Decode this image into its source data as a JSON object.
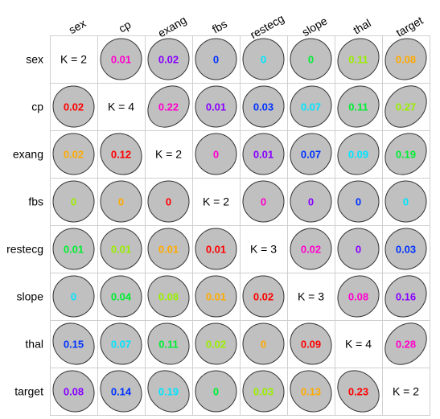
{
  "chart_data": {
    "type": "heatmap",
    "variables": [
      "sex",
      "cp",
      "exang",
      "fbs",
      "restecg",
      "slope",
      "thal",
      "target"
    ],
    "diagonal_labels": [
      "K = 2",
      "K = 4",
      "K = 2",
      "K = 2",
      "K = 3",
      "K = 3",
      "K = 4",
      "K = 2"
    ],
    "cells": [
      [
        null,
        "0.01",
        "0.02",
        "0",
        "0",
        "0",
        "0.11",
        "0.08"
      ],
      [
        "0.02",
        null,
        "0.22",
        "0.01",
        "0.03",
        "0.07",
        "0.11",
        "0.27"
      ],
      [
        "0.02",
        "0.12",
        null,
        "0",
        "0.01",
        "0.07",
        "0.09",
        "0.19"
      ],
      [
        "0",
        "0",
        "0",
        null,
        "0",
        "0",
        "0",
        "0"
      ],
      [
        "0.01",
        "0.01",
        "0.01",
        "0.01",
        null,
        "0.02",
        "0",
        "0.03"
      ],
      [
        "0",
        "0.04",
        "0.08",
        "0.01",
        "0.02",
        null,
        "0.08",
        "0.16"
      ],
      [
        "0.15",
        "0.07",
        "0.11",
        "0.02",
        "0",
        "0.09",
        null,
        "0.28"
      ],
      [
        "0.08",
        "0.14",
        "0.19",
        "0",
        "0.03",
        "0.13",
        "0.23",
        null
      ]
    ],
    "text_colors": [
      [
        null,
        "#ff00cc",
        "#8800ff",
        "#0033ff",
        "#00e5ff",
        "#00ee33",
        "#99ee00",
        "#ffaa00"
      ],
      [
        "#ff0000",
        null,
        "#ff00cc",
        "#8800ff",
        "#0033ff",
        "#00e5ff",
        "#00ee33",
        "#99ee00"
      ],
      [
        "#ffaa00",
        "#ff0000",
        null,
        "#ff00cc",
        "#8800ff",
        "#0033ff",
        "#00e5ff",
        "#00ee33"
      ],
      [
        "#99ee00",
        "#ffaa00",
        "#ff0000",
        null,
        "#ff00cc",
        "#8800ff",
        "#0033ff",
        "#00e5ff"
      ],
      [
        "#00ee33",
        "#99ee00",
        "#ffaa00",
        "#ff0000",
        null,
        "#ff00cc",
        "#8800ff",
        "#0033ff"
      ],
      [
        "#00e5ff",
        "#00ee33",
        "#99ee00",
        "#ffaa00",
        "#ff0000",
        null,
        "#ff00cc",
        "#8800ff"
      ],
      [
        "#0033ff",
        "#00e5ff",
        "#00ee33",
        "#99ee00",
        "#ffaa00",
        "#ff0000",
        null,
        "#ff00cc"
      ],
      [
        "#8800ff",
        "#0033ff",
        "#00e5ff",
        "#00ee33",
        "#99ee00",
        "#ffaa00",
        "#ff0000",
        null
      ]
    ],
    "ellipse_fill": "#c0c0c0",
    "grid": true
  }
}
